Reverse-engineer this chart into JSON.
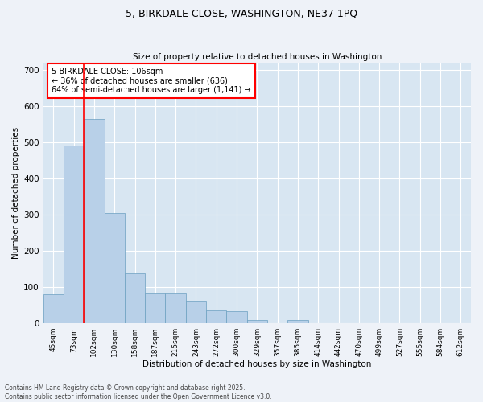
{
  "title_line1": "5, BIRKDALE CLOSE, WASHINGTON, NE37 1PQ",
  "title_line2": "Size of property relative to detached houses in Washington",
  "xlabel": "Distribution of detached houses by size in Washington",
  "ylabel": "Number of detached properties",
  "categories": [
    "45sqm",
    "73sqm",
    "102sqm",
    "130sqm",
    "158sqm",
    "187sqm",
    "215sqm",
    "243sqm",
    "272sqm",
    "300sqm",
    "329sqm",
    "357sqm",
    "385sqm",
    "414sqm",
    "442sqm",
    "470sqm",
    "499sqm",
    "527sqm",
    "555sqm",
    "584sqm",
    "612sqm"
  ],
  "values": [
    80,
    490,
    565,
    305,
    137,
    82,
    82,
    60,
    35,
    33,
    10,
    0,
    10,
    0,
    0,
    0,
    0,
    0,
    0,
    0,
    0
  ],
  "bar_color": "#b8d0e8",
  "bar_edge_color": "#6a9fc0",
  "vline_color": "red",
  "annotation_text": "5 BIRKDALE CLOSE: 106sqm\n← 36% of detached houses are smaller (636)\n64% of semi-detached houses are larger (1,141) →",
  "annotation_box_color": "white",
  "annotation_box_edgecolor": "red",
  "ylim": [
    0,
    720
  ],
  "yticks": [
    0,
    100,
    200,
    300,
    400,
    500,
    600,
    700
  ],
  "footer_line1": "Contains HM Land Registry data © Crown copyright and database right 2025.",
  "footer_line2": "Contains public sector information licensed under the Open Government Licence v3.0.",
  "bg_color": "#eef2f8",
  "plot_bg_color": "#d8e6f2"
}
